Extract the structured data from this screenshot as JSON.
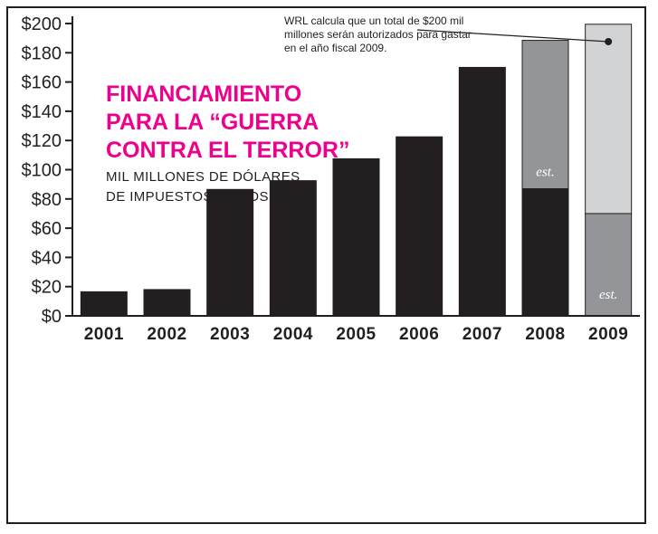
{
  "chart_data": {
    "type": "bar",
    "title": "FINANCIAMIENTO PARA LA “GUERRA CONTRA EL TERROR”",
    "title_lines": [
      "FINANCIAMIENTO",
      "PARA LA “GUERRA",
      "CONTRA EL TERROR”"
    ],
    "subtitle_lines": [
      "MIL MILLONES DE DÓLARES",
      "DE IMPUESTOS EN LOS EEUU"
    ],
    "xlabel": "",
    "ylabel": "",
    "ylim": [
      0,
      200
    ],
    "y_ticks": [
      0,
      20,
      40,
      60,
      80,
      100,
      120,
      140,
      160,
      180,
      200
    ],
    "y_tick_labels": [
      "$0",
      "$20",
      "$40",
      "$60",
      "$80",
      "$100",
      "$120",
      "$140",
      "$160",
      "$180",
      "$200"
    ],
    "grid": false,
    "stacked": true,
    "categories": [
      "2001",
      "2002",
      "2003",
      "2004",
      "2005",
      "2006",
      "2007",
      "2008",
      "2009"
    ],
    "series": [
      {
        "values": [
          16.5,
          18,
          86.5,
          92.5,
          107.5,
          122.5,
          170,
          87,
          0
        ],
        "color": "#231f20"
      },
      {
        "values": [
          0,
          0,
          0,
          0,
          0,
          0,
          0,
          101.5,
          70
        ],
        "color": "#939598"
      },
      {
        "values": [
          0,
          0,
          0,
          0,
          0,
          0,
          0,
          0,
          129.5
        ],
        "color": "#d1d3d4"
      }
    ],
    "est_label": "est.",
    "est_categories": [
      "2008",
      "2009"
    ],
    "annotation": {
      "lines": [
        "WRL calcula que un total de $200 mil",
        "millones serán autorizados para gastar",
        "en el año fiscal 2009."
      ],
      "category": "2009",
      "value": 200
    },
    "accent_color": "#ec008c"
  }
}
